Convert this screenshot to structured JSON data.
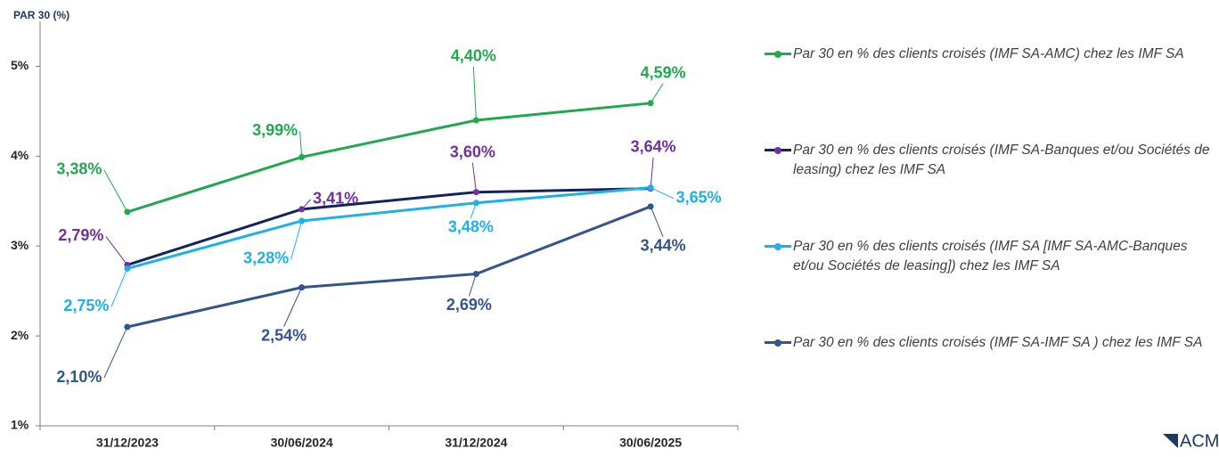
{
  "chart_data": {
    "type": "line",
    "y_axis_title": "PAR 30 (%)",
    "categories": [
      "31/12/2023",
      "30/06/2024",
      "31/12/2024",
      "30/06/2025"
    ],
    "ylim": [
      1,
      5.5
    ],
    "yticks": [
      {
        "value": 1,
        "label": "1%"
      },
      {
        "value": 2,
        "label": "2%"
      },
      {
        "value": 3,
        "label": "3%"
      },
      {
        "value": 4,
        "label": "4%"
      },
      {
        "value": 5,
        "label": "5%"
      }
    ],
    "legend": "right",
    "series": [
      {
        "name": "Par 30 en % des clients croisés (IMF SA-AMC) chez les IMF SA",
        "color": "#22a84f",
        "marker_color": "#22a84f",
        "label_color": "#22a84f",
        "values": [
          3.38,
          3.99,
          4.4,
          4.59
        ],
        "value_labels": [
          "3,38%",
          "3,99%",
          "4,40%",
          "4,59%"
        ]
      },
      {
        "name": "Par 30 en % des clients croisés  (IMF SA-Banques et/ou Sociétés de leasing) chez les IMF SA",
        "color": "#13235b",
        "marker_color": "#7030a0",
        "label_color": "#7030a0",
        "values": [
          2.79,
          3.41,
          3.6,
          3.64
        ],
        "value_labels": [
          "2,79%",
          "3,41%",
          "3,60%",
          "3,64%"
        ]
      },
      {
        "name": "Par 30 en % des clients croisés (IMF SA [IMF SA-AMC-Banques et/ou Sociétés de leasing]) chez les IMF SA",
        "color": "#1eb0e8",
        "marker_color": "#1eb0e8",
        "label_color": "#1eb0e8",
        "values": [
          2.75,
          3.28,
          3.48,
          3.65
        ],
        "value_labels": [
          "2,75%",
          "3,28%",
          "3,48%",
          "3,65%"
        ]
      },
      {
        "name": "Par 30 en % des clients croisés (IMF SA-IMF SA ) chez les IMF SA",
        "color": "#34558b",
        "marker_color": "#34558b",
        "label_color": "#34558b",
        "values": [
          2.1,
          2.54,
          2.69,
          3.44
        ],
        "value_labels": [
          "2,10%",
          "2,54%",
          "2,69%",
          "3,44%"
        ]
      }
    ]
  },
  "logo": "ACM"
}
